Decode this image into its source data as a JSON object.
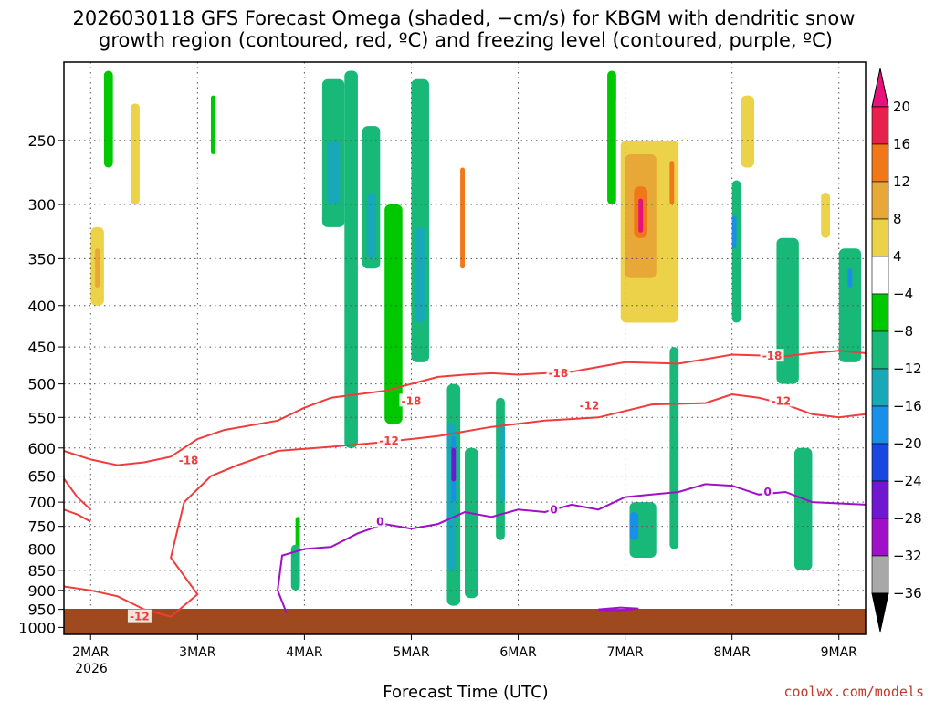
{
  "chart_data": {
    "type": "heatmap",
    "title_line1": "2026030118 GFS Forecast Omega (shaded, −cm/s) for KBGM with dendritic snow",
    "title_line2": "growth region (contoured, red, ºC) and freezing level (contoured, purple, ºC)",
    "xlabel": "Forecast Time (UTC)",
    "ylabel": "Pressure (hPa)",
    "credit": "coolwx.com/models",
    "x_tick_labels": [
      "2MAR",
      "3MAR",
      "4MAR",
      "5MAR",
      "6MAR",
      "7MAR",
      "8MAR",
      "9MAR"
    ],
    "x_year_label": "2026",
    "x_ticks_hours_from_start": [
      6,
      30,
      54,
      78,
      102,
      126,
      150,
      174
    ],
    "x_range_hours": [
      0,
      180
    ],
    "y_tick_labels": [
      "250",
      "300",
      "350",
      "400",
      "450",
      "500",
      "550",
      "600",
      "650",
      "700",
      "750",
      "800",
      "850",
      "900",
      "950",
      "1000"
    ],
    "y_ticks": [
      250,
      300,
      350,
      400,
      450,
      500,
      550,
      600,
      650,
      700,
      750,
      800,
      850,
      900,
      950,
      1000
    ],
    "y_range": [
      200,
      1020
    ],
    "y_scale": "log",
    "colorbar_labels": [
      "20",
      "16",
      "12",
      "8",
      "4",
      "−4",
      "−8",
      "−12",
      "−16",
      "−20",
      "−24",
      "−28",
      "−32",
      "−36"
    ],
    "colorbar_levels": [
      20,
      16,
      12,
      8,
      4,
      -4,
      -8,
      -12,
      -16,
      -20,
      -24,
      -28,
      -32,
      -36
    ],
    "colorbar_colors": [
      "#e8204c",
      "#f07818",
      "#e8a838",
      "#ebd248",
      "#ffffff",
      "#00c800",
      "#18b878",
      "#18a8b8",
      "#1890e8",
      "#1848e0",
      "#7018d0",
      "#a010c8",
      "#a8a8a8",
      "#000000"
    ],
    "colorbar_top_color": "#e8107c",
    "dendritic_contours": [
      {
        "label": "-18",
        "points": [
          [
            0,
            605
          ],
          [
            6,
            620
          ],
          [
            12,
            630
          ],
          [
            18,
            625
          ],
          [
            24,
            615
          ],
          [
            30,
            585
          ],
          [
            36,
            570
          ],
          [
            48,
            555
          ],
          [
            54,
            535
          ],
          [
            60,
            520
          ],
          [
            66,
            515
          ],
          [
            72,
            510
          ],
          [
            78,
            500
          ],
          [
            84,
            490
          ],
          [
            90,
            487
          ],
          [
            96,
            485
          ],
          [
            102,
            487
          ],
          [
            108,
            485
          ],
          [
            114,
            483
          ],
          [
            126,
            470
          ],
          [
            138,
            472
          ],
          [
            150,
            460
          ],
          [
            162,
            462
          ],
          [
            168,
            458
          ],
          [
            174,
            455
          ],
          [
            180,
            458
          ]
        ]
      },
      {
        "label": "-12",
        "points": [
          [
            0,
            715
          ],
          [
            3,
            725
          ],
          [
            6,
            740
          ]
        ]
      },
      {
        "label": "-12",
        "points": [
          [
            0,
            655
          ],
          [
            3,
            690
          ],
          [
            6,
            715
          ]
        ]
      },
      {
        "label": "-12",
        "points": [
          [
            0,
            890
          ],
          [
            6,
            900
          ],
          [
            12,
            915
          ],
          [
            18,
            950
          ],
          [
            24,
            970
          ],
          [
            30,
            910
          ],
          [
            24,
            820
          ],
          [
            27,
            700
          ],
          [
            33,
            650
          ],
          [
            39,
            630
          ],
          [
            48,
            605
          ],
          [
            60,
            598
          ],
          [
            72,
            590
          ],
          [
            84,
            580
          ],
          [
            96,
            565
          ],
          [
            108,
            555
          ],
          [
            120,
            550
          ],
          [
            132,
            530
          ],
          [
            144,
            528
          ],
          [
            150,
            515
          ],
          [
            156,
            520
          ],
          [
            162,
            530
          ],
          [
            168,
            545
          ],
          [
            174,
            550
          ],
          [
            180,
            545
          ]
        ]
      }
    ],
    "dendritic_label_points": [
      {
        "label": "-18",
        "x_hour": 28,
        "p": 622
      },
      {
        "label": "-18",
        "x_hour": 78,
        "p": 525
      },
      {
        "label": "-18",
        "x_hour": 111,
        "p": 485
      },
      {
        "label": "-18",
        "x_hour": 159,
        "p": 462
      },
      {
        "label": "-12",
        "x_hour": 73,
        "p": 588
      },
      {
        "label": "-12",
        "x_hour": 118,
        "p": 532
      },
      {
        "label": "-12",
        "x_hour": 161,
        "p": 525
      },
      {
        "label": "-12",
        "x_hour": 17,
        "p": 970
      }
    ],
    "freezing_contours": [
      {
        "label": "0",
        "points": [
          [
            50,
            960
          ],
          [
            48,
            900
          ],
          [
            49,
            815
          ],
          [
            54,
            800
          ],
          [
            60,
            795
          ],
          [
            66,
            765
          ],
          [
            72,
            745
          ],
          [
            78,
            755
          ],
          [
            84,
            745
          ],
          [
            90,
            720
          ],
          [
            96,
            730
          ],
          [
            102,
            715
          ],
          [
            108,
            720
          ],
          [
            114,
            705
          ],
          [
            120,
            715
          ],
          [
            126,
            690
          ],
          [
            132,
            685
          ],
          [
            138,
            680
          ],
          [
            144,
            665
          ],
          [
            150,
            668
          ],
          [
            156,
            685
          ],
          [
            162,
            680
          ],
          [
            168,
            700
          ],
          [
            180,
            705
          ]
        ]
      },
      {
        "label": "0",
        "points": [
          [
            120,
            950
          ],
          [
            125,
            945
          ],
          [
            129,
            948
          ],
          [
            125,
            953
          ],
          [
            120,
            952
          ]
        ]
      }
    ],
    "freezing_label_points": [
      {
        "label": "0",
        "x_hour": 71,
        "p": 740
      },
      {
        "label": "0",
        "x_hour": 110,
        "p": 715
      },
      {
        "label": "0",
        "x_hour": 158,
        "p": 680
      }
    ],
    "omega_blobs": [
      {
        "level": 4,
        "h0": 1,
        "h1": 5,
        "p0": 205,
        "p1": 580
      },
      {
        "level": 4,
        "h0": 5,
        "h1": 10,
        "p0": 330,
        "p1": 760
      },
      {
        "level": 8,
        "h0": 6,
        "h1": 9,
        "p0": 320,
        "p1": 400
      },
      {
        "level": 12,
        "h0": 7,
        "h1": 8,
        "p0": 340,
        "p1": 380
      },
      {
        "level": 4,
        "h0": 14,
        "h1": 18,
        "p0": 205,
        "p1": 430
      },
      {
        "level": 8,
        "h0": 15,
        "h1": 17,
        "p0": 225,
        "p1": 300
      },
      {
        "level": 4,
        "h0": 18,
        "h1": 22,
        "p0": 300,
        "p1": 570
      },
      {
        "level": -4,
        "h0": 9,
        "h1": 11,
        "p0": 205,
        "p1": 270
      },
      {
        "level": 4,
        "h0": 24,
        "h1": 28,
        "p0": 250,
        "p1": 550
      },
      {
        "level": 4,
        "h0": 30,
        "h1": 33,
        "p0": 205,
        "p1": 330
      },
      {
        "level": -4,
        "h0": 33,
        "h1": 34,
        "p0": 220,
        "p1": 260
      },
      {
        "level": 4,
        "h0": 38,
        "h1": 41,
        "p0": 280,
        "p1": 460
      },
      {
        "level": -4,
        "h0": 52,
        "h1": 53,
        "p0": 730,
        "p1": 880
      },
      {
        "level": -8,
        "h0": 51,
        "h1": 53,
        "p0": 790,
        "p1": 900
      },
      {
        "level": -8,
        "h0": 58,
        "h1": 63,
        "p0": 210,
        "p1": 320
      },
      {
        "level": -12,
        "h0": 59,
        "h1": 62,
        "p0": 250,
        "p1": 300
      },
      {
        "level": -8,
        "h0": 63,
        "h1": 66,
        "p0": 205,
        "p1": 600
      },
      {
        "level": -8,
        "h0": 67,
        "h1": 71,
        "p0": 240,
        "p1": 360
      },
      {
        "level": -12,
        "h0": 68,
        "h1": 70,
        "p0": 290,
        "p1": 350
      },
      {
        "level": -4,
        "h0": 72,
        "h1": 76,
        "p0": 300,
        "p1": 560
      },
      {
        "level": -8,
        "h0": 78,
        "h1": 82,
        "p0": 210,
        "p1": 470
      },
      {
        "level": -12,
        "h0": 79,
        "h1": 81,
        "p0": 320,
        "p1": 420
      },
      {
        "level": -8,
        "h0": 86,
        "h1": 89,
        "p0": 500,
        "p1": 940
      },
      {
        "level": -12,
        "h0": 86,
        "h1": 88,
        "p0": 560,
        "p1": 850
      },
      {
        "level": -16,
        "h0": 87,
        "h1": 88,
        "p0": 580,
        "p1": 700
      },
      {
        "level": -24,
        "h0": 87,
        "h1": 88,
        "p0": 600,
        "p1": 660
      },
      {
        "level": 16,
        "h0": 89,
        "h1": 90,
        "p0": 270,
        "p1": 360
      },
      {
        "level": -8,
        "h0": 90,
        "h1": 93,
        "p0": 600,
        "p1": 920
      },
      {
        "level": -8,
        "h0": 97,
        "h1": 99,
        "p0": 520,
        "p1": 780
      },
      {
        "level": -12,
        "h0": 98,
        "h1": 99,
        "p0": 560,
        "p1": 700
      },
      {
        "level": 4,
        "h0": 106,
        "h1": 108,
        "p0": 205,
        "p1": 440
      },
      {
        "level": -4,
        "h0": 122,
        "h1": 124,
        "p0": 205,
        "p1": 300
      },
      {
        "level": 4,
        "h0": 124,
        "h1": 141,
        "p0": 220,
        "p1": 600
      },
      {
        "level": 8,
        "h0": 125,
        "h1": 138,
        "p0": 250,
        "p1": 420
      },
      {
        "level": 12,
        "h0": 126,
        "h1": 133,
        "p0": 260,
        "p1": 370
      },
      {
        "level": 16,
        "h0": 128,
        "h1": 131,
        "p0": 285,
        "p1": 330
      },
      {
        "level": 20,
        "h0": 129,
        "h1": 130,
        "p0": 295,
        "p1": 325
      },
      {
        "level": 16,
        "h0": 136,
        "h1": 137,
        "p0": 265,
        "p1": 300
      },
      {
        "level": -8,
        "h0": 127,
        "h1": 133,
        "p0": 700,
        "p1": 820
      },
      {
        "level": -16,
        "h0": 127,
        "h1": 129,
        "p0": 720,
        "p1": 780
      },
      {
        "level": -8,
        "h0": 136,
        "h1": 138,
        "p0": 450,
        "p1": 800
      },
      {
        "level": 4,
        "h0": 148,
        "h1": 158,
        "p0": 205,
        "p1": 300
      },
      {
        "level": 8,
        "h0": 152,
        "h1": 155,
        "p0": 220,
        "p1": 270
      },
      {
        "level": -8,
        "h0": 150,
        "h1": 152,
        "p0": 280,
        "p1": 420
      },
      {
        "level": -16,
        "h0": 150,
        "h1": 151,
        "p0": 310,
        "p1": 340
      },
      {
        "level": -8,
        "h0": 160,
        "h1": 165,
        "p0": 330,
        "p1": 500
      },
      {
        "level": -8,
        "h0": 164,
        "h1": 168,
        "p0": 600,
        "p1": 850
      },
      {
        "level": 8,
        "h0": 170,
        "h1": 172,
        "p0": 290,
        "p1": 330
      },
      {
        "level": -8,
        "h0": 174,
        "h1": 179,
        "p0": 340,
        "p1": 470
      },
      {
        "level": -16,
        "h0": 176,
        "h1": 177,
        "p0": 360,
        "p1": 380
      }
    ]
  }
}
